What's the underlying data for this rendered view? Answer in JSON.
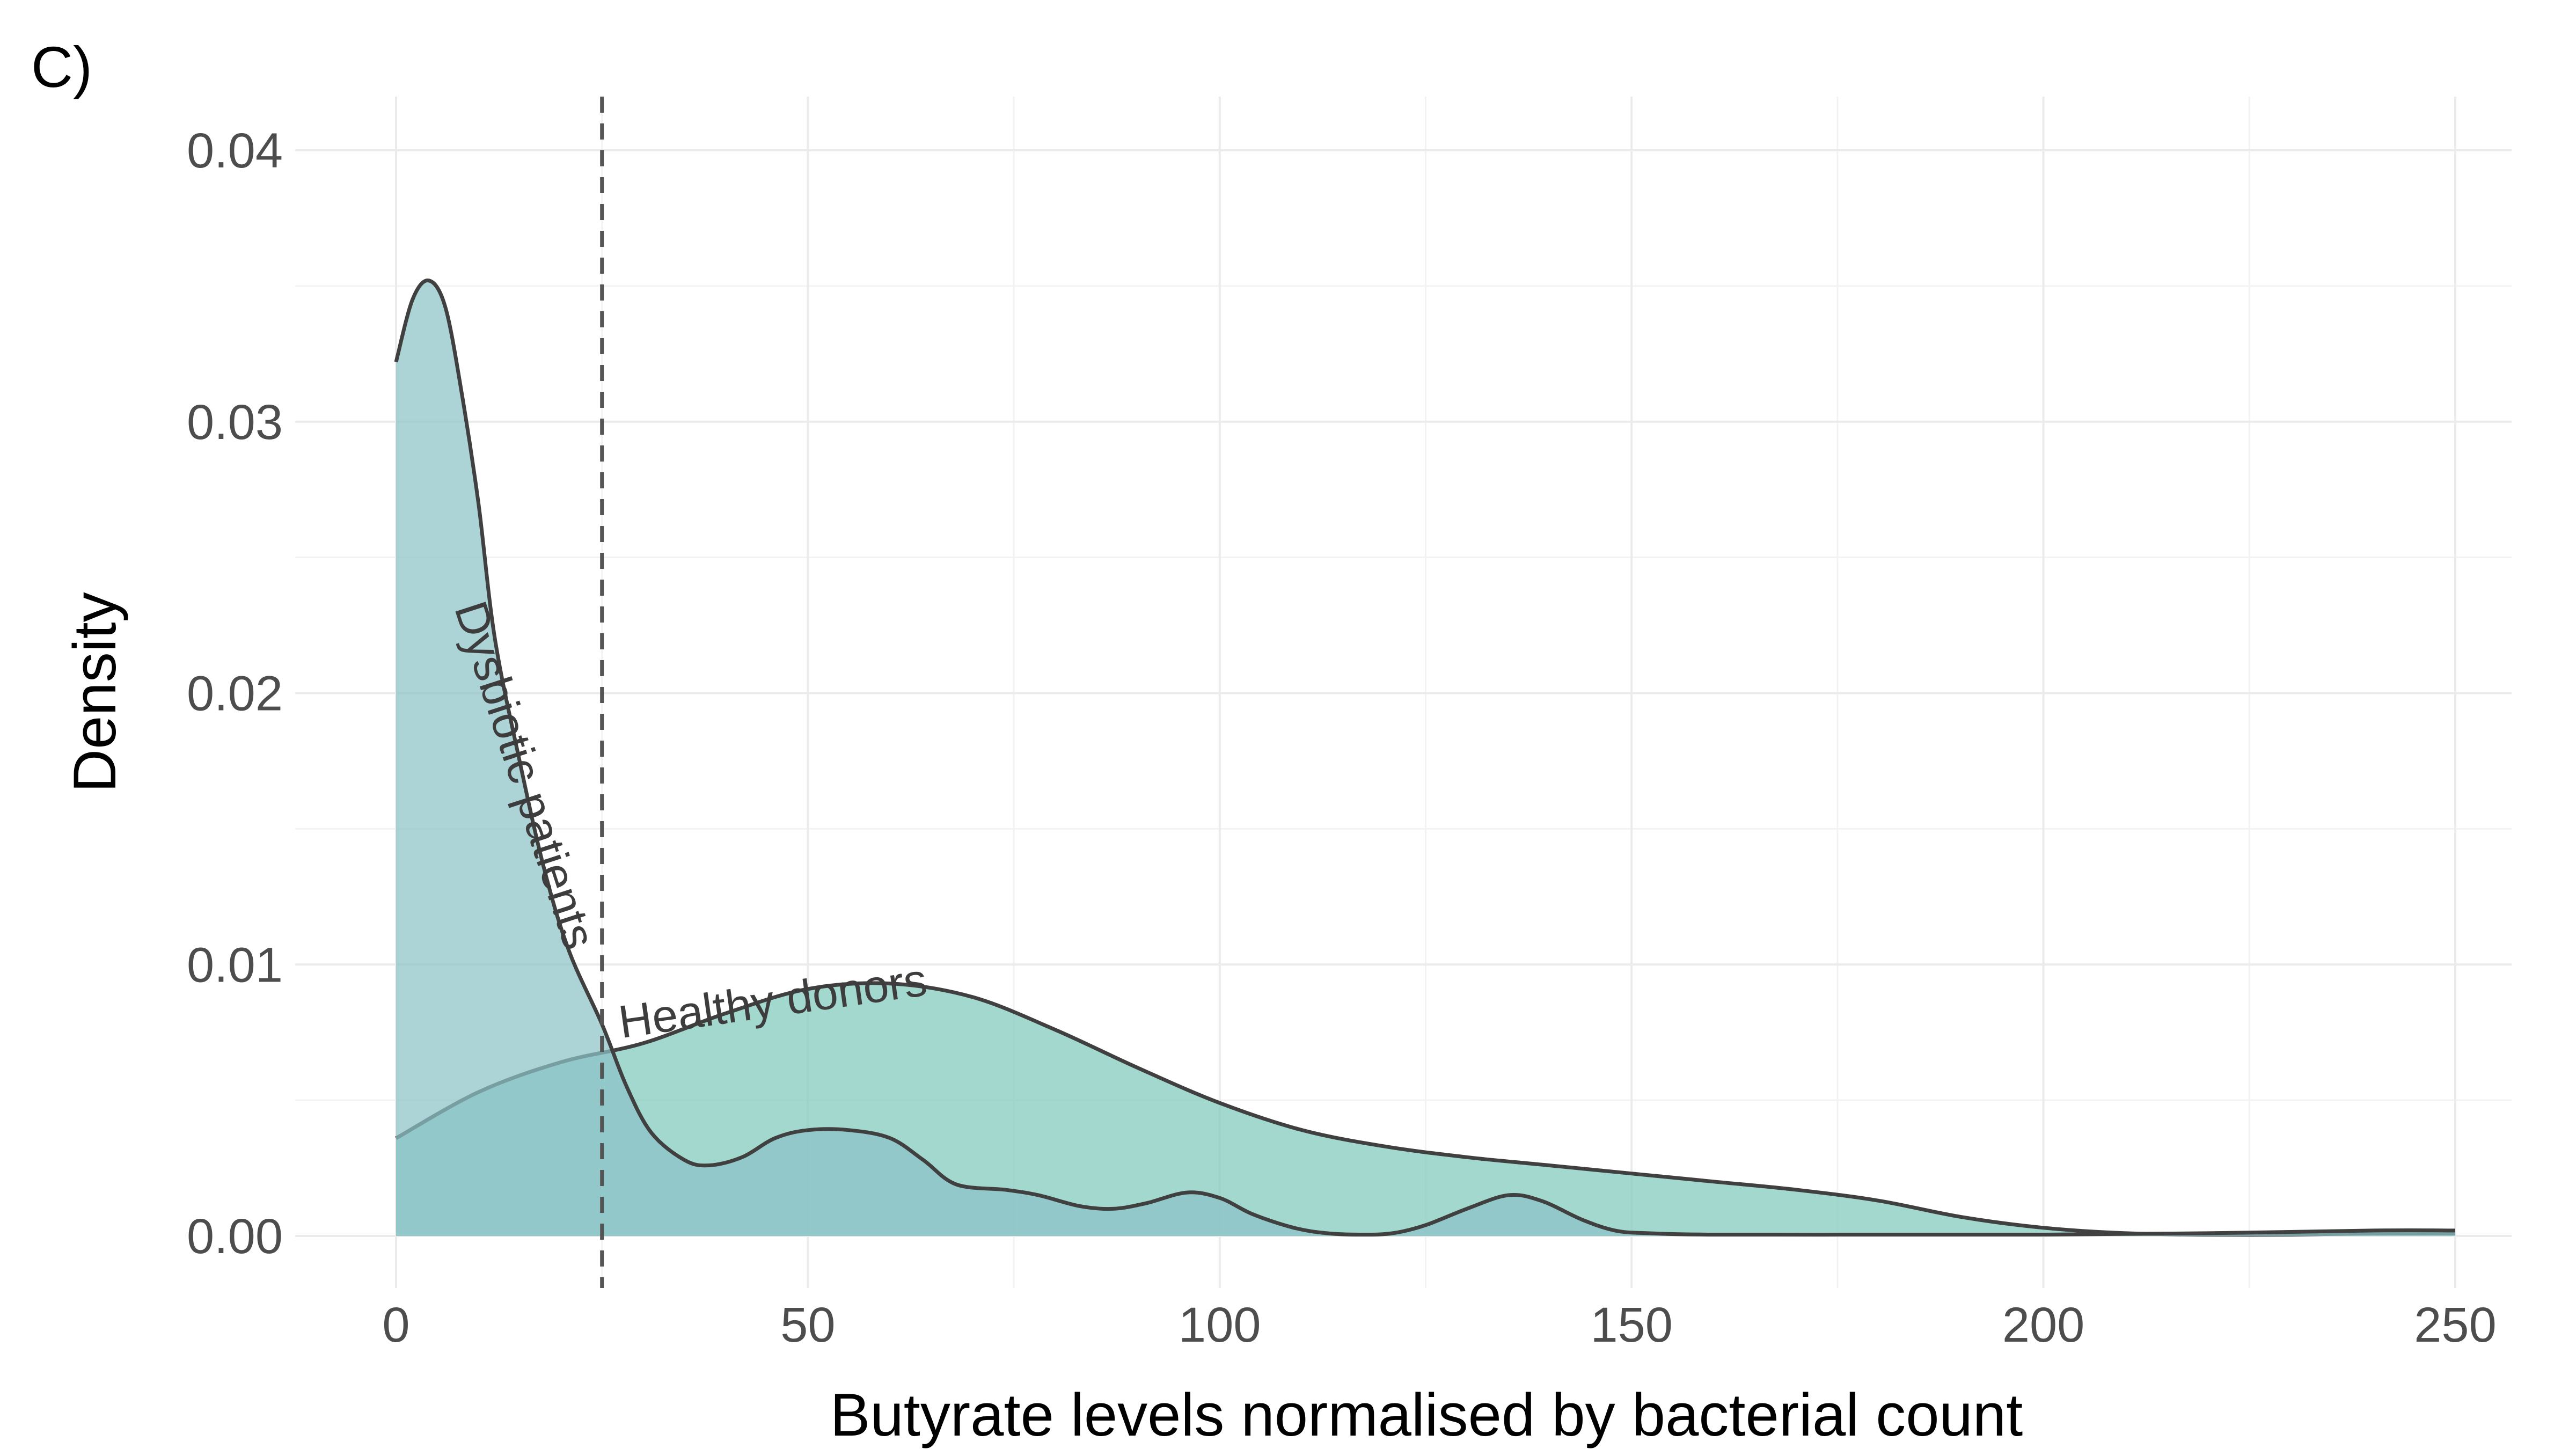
{
  "panel_label": "C)",
  "chart_data": {
    "type": "area",
    "title": "",
    "xlabel": "Butyrate levels normalised by bacterial count",
    "ylabel": "Density",
    "xlim": [
      0,
      250
    ],
    "ylim": [
      0,
      0.04
    ],
    "x_ticks": [
      0,
      50,
      100,
      150,
      200,
      250
    ],
    "x_tick_labels": [
      "0",
      "50",
      "100",
      "150",
      "200",
      "250"
    ],
    "y_ticks": [
      0,
      0.01,
      0.02,
      0.03,
      0.04
    ],
    "y_tick_labels": [
      "0.00",
      "0.01",
      "0.02",
      "0.03",
      "0.04"
    ],
    "grid": true,
    "threshold_line": {
      "x": 25,
      "style": "dashed",
      "color": "#555555"
    },
    "series": [
      {
        "name": "Healthy donors",
        "fill": "#7fc9bd",
        "stroke": "#404040",
        "points": [
          [
            0,
            0.0036
          ],
          [
            10,
            0.0053
          ],
          [
            20,
            0.0064
          ],
          [
            30,
            0.0071
          ],
          [
            40,
            0.0082
          ],
          [
            50,
            0.0091
          ],
          [
            60,
            0.0093
          ],
          [
            70,
            0.0088
          ],
          [
            80,
            0.0076
          ],
          [
            90,
            0.0062
          ],
          [
            100,
            0.0049
          ],
          [
            110,
            0.0039
          ],
          [
            120,
            0.0033
          ],
          [
            130,
            0.0029
          ],
          [
            140,
            0.0026
          ],
          [
            150,
            0.0023
          ],
          [
            160,
            0.002
          ],
          [
            170,
            0.0017
          ],
          [
            180,
            0.0013
          ],
          [
            190,
            0.0007
          ],
          [
            200,
            0.0003
          ],
          [
            210,
            0.0001
          ],
          [
            220,
            5e-05
          ],
          [
            230,
            5e-05
          ],
          [
            240,
            0.0001
          ],
          [
            250,
            0.0001
          ]
        ]
      },
      {
        "name": "Dysbiotic patients",
        "fill": "#8cc2c6",
        "stroke": "#404040",
        "points": [
          [
            0,
            0.0322
          ],
          [
            2,
            0.0345
          ],
          [
            4,
            0.0352
          ],
          [
            6,
            0.0342
          ],
          [
            8,
            0.031
          ],
          [
            10,
            0.027
          ],
          [
            12,
            0.022
          ],
          [
            15,
            0.0175
          ],
          [
            18,
            0.0135
          ],
          [
            21,
            0.0105
          ],
          [
            25,
            0.0078
          ],
          [
            28,
            0.0055
          ],
          [
            31,
            0.0038
          ],
          [
            35,
            0.0028
          ],
          [
            38,
            0.0026
          ],
          [
            42,
            0.0029
          ],
          [
            46,
            0.0036
          ],
          [
            50,
            0.0039
          ],
          [
            55,
            0.0039
          ],
          [
            60,
            0.0036
          ],
          [
            64,
            0.0028
          ],
          [
            68,
            0.0019
          ],
          [
            74,
            0.0017
          ],
          [
            78,
            0.0015
          ],
          [
            83,
            0.0011
          ],
          [
            87,
            0.001
          ],
          [
            91,
            0.0012
          ],
          [
            96,
            0.0016
          ],
          [
            100,
            0.0014
          ],
          [
            104,
            0.0008
          ],
          [
            109,
            0.0003
          ],
          [
            113,
            0.0001
          ],
          [
            117,
            5e-05
          ],
          [
            121,
            0.0001
          ],
          [
            125,
            0.0004
          ],
          [
            130,
            0.001
          ],
          [
            135,
            0.0015
          ],
          [
            139,
            0.0013
          ],
          [
            144,
            0.0006
          ],
          [
            148,
            0.0002
          ],
          [
            152,
            0.0001
          ],
          [
            160,
            5e-05
          ],
          [
            180,
            5e-05
          ],
          [
            200,
            5e-05
          ],
          [
            220,
            0.0001
          ],
          [
            240,
            0.0002
          ],
          [
            250,
            0.0002
          ]
        ]
      }
    ]
  }
}
